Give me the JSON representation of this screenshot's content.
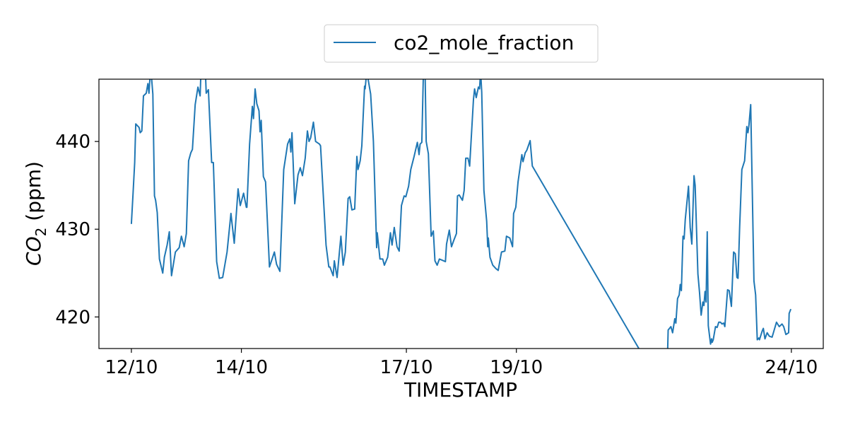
{
  "chart_data": {
    "type": "line",
    "title": "",
    "xlabel": "TIMESTAMP",
    "ylabel_main": "CO",
    "ylabel_sub": "2",
    "ylabel_unit": " (ppm)",
    "x_unit": "days since 12/10",
    "xlim": [
      -0.59,
      12.58
    ],
    "ylim": [
      416.4,
      447.1
    ],
    "grid": false,
    "legend_placement": "top-center (outside)",
    "x_ticks": [
      {
        "value": 0,
        "label": "12/10"
      },
      {
        "value": 2,
        "label": "14/10"
      },
      {
        "value": 5,
        "label": "17/10"
      },
      {
        "value": 7,
        "label": "19/10"
      },
      {
        "value": 12,
        "label": "24/10"
      }
    ],
    "y_ticks": [
      {
        "value": 420,
        "label": "420"
      },
      {
        "value": 430,
        "label": "430"
      },
      {
        "value": 440,
        "label": "440"
      }
    ],
    "series": [
      {
        "name": "co2_mole_fraction",
        "color": "#1f77b4",
        "points": [
          [
            0,
            430.6
          ],
          [
            0.03,
            434.1
          ],
          [
            0.06,
            437.6
          ],
          [
            0.08,
            442.0
          ],
          [
            0.14,
            441.6
          ],
          [
            0.16,
            441.0
          ],
          [
            0.19,
            441.2
          ],
          [
            0.22,
            445.2
          ],
          [
            0.27,
            445.5
          ],
          [
            0.3,
            446.6
          ],
          [
            0.32,
            445.5
          ],
          [
            0.35,
            448.5
          ],
          [
            0.39,
            445.4
          ],
          [
            0.42,
            433.8
          ],
          [
            0.44,
            433.3
          ],
          [
            0.47,
            431.9
          ],
          [
            0.51,
            426.6
          ],
          [
            0.57,
            425.0
          ],
          [
            0.6,
            426.8
          ],
          [
            0.65,
            428.2
          ],
          [
            0.69,
            429.7
          ],
          [
            0.73,
            424.7
          ],
          [
            0.8,
            427.4
          ],
          [
            0.87,
            427.9
          ],
          [
            0.91,
            429.2
          ],
          [
            0.96,
            428.0
          ],
          [
            1.0,
            429.5
          ],
          [
            1.04,
            437.8
          ],
          [
            1.08,
            438.7
          ],
          [
            1.11,
            439.1
          ],
          [
            1.16,
            444.2
          ],
          [
            1.21,
            446.2
          ],
          [
            1.25,
            445.2
          ],
          [
            1.27,
            449.0
          ],
          [
            1.34,
            449.0
          ],
          [
            1.36,
            445.5
          ],
          [
            1.4,
            445.9
          ],
          [
            1.46,
            437.6
          ],
          [
            1.49,
            437.6
          ],
          [
            1.55,
            426.3
          ],
          [
            1.6,
            424.4
          ],
          [
            1.66,
            424.5
          ],
          [
            1.74,
            427.4
          ],
          [
            1.81,
            431.8
          ],
          [
            1.87,
            428.4
          ],
          [
            1.94,
            434.6
          ],
          [
            1.98,
            432.7
          ],
          [
            2.04,
            434.1
          ],
          [
            2.09,
            432.5
          ],
          [
            2.1,
            432.5
          ],
          [
            2.15,
            439.7
          ],
          [
            2.2,
            444.0
          ],
          [
            2.22,
            442.6
          ],
          [
            2.25,
            446.0
          ],
          [
            2.28,
            444.3
          ],
          [
            2.32,
            443.5
          ],
          [
            2.34,
            441.1
          ],
          [
            2.36,
            442.4
          ],
          [
            2.4,
            436.0
          ],
          [
            2.44,
            435.4
          ],
          [
            2.51,
            425.7
          ],
          [
            2.6,
            427.4
          ],
          [
            2.64,
            426.0
          ],
          [
            2.7,
            425.2
          ],
          [
            2.77,
            436.8
          ],
          [
            2.84,
            439.7
          ],
          [
            2.88,
            440.3
          ],
          [
            2.9,
            438.8
          ],
          [
            2.92,
            441.0
          ],
          [
            2.97,
            432.9
          ],
          [
            3.03,
            436.2
          ],
          [
            3.07,
            437.0
          ],
          [
            3.11,
            436.1
          ],
          [
            3.16,
            438.1
          ],
          [
            3.2,
            441.2
          ],
          [
            3.23,
            440.0
          ],
          [
            3.26,
            440.4
          ],
          [
            3.31,
            442.2
          ],
          [
            3.35,
            440.0
          ],
          [
            3.42,
            439.7
          ],
          [
            3.44,
            439.5
          ],
          [
            3.54,
            428.2
          ],
          [
            3.59,
            425.7
          ],
          [
            3.61,
            425.7
          ],
          [
            3.67,
            424.7
          ],
          [
            3.69,
            426.4
          ],
          [
            3.74,
            424.5
          ],
          [
            3.81,
            429.2
          ],
          [
            3.85,
            425.9
          ],
          [
            3.89,
            427.4
          ],
          [
            3.94,
            433.5
          ],
          [
            3.97,
            433.7
          ],
          [
            4.01,
            432.2
          ],
          [
            4.06,
            432.3
          ],
          [
            4.1,
            438.3
          ],
          [
            4.12,
            436.8
          ],
          [
            4.16,
            437.8
          ],
          [
            4.19,
            439.5
          ],
          [
            4.24,
            446.3
          ],
          [
            4.25,
            446.0
          ],
          [
            4.28,
            448.0
          ],
          [
            4.35,
            445.4
          ],
          [
            4.4,
            440.0
          ],
          [
            4.46,
            427.9
          ],
          [
            4.47,
            429.6
          ],
          [
            4.52,
            426.6
          ],
          [
            4.57,
            426.6
          ],
          [
            4.6,
            425.9
          ],
          [
            4.66,
            426.8
          ],
          [
            4.71,
            429.6
          ],
          [
            4.74,
            428.2
          ],
          [
            4.78,
            430.2
          ],
          [
            4.83,
            428.0
          ],
          [
            4.87,
            427.5
          ],
          [
            4.91,
            432.7
          ],
          [
            4.96,
            433.8
          ],
          [
            4.99,
            433.7
          ],
          [
            5.04,
            434.9
          ],
          [
            5.08,
            436.8
          ],
          [
            5.14,
            438.3
          ],
          [
            5.2,
            439.9
          ],
          [
            5.23,
            438.5
          ],
          [
            5.25,
            439.7
          ],
          [
            5.28,
            439.9
          ],
          [
            5.31,
            448.0
          ],
          [
            5.34,
            448.0
          ],
          [
            5.36,
            440.0
          ],
          [
            5.4,
            438.6
          ],
          [
            5.45,
            429.2
          ],
          [
            5.49,
            429.8
          ],
          [
            5.52,
            426.4
          ],
          [
            5.56,
            425.9
          ],
          [
            5.6,
            426.6
          ],
          [
            5.64,
            426.5
          ],
          [
            5.71,
            426.3
          ],
          [
            5.73,
            428.3
          ],
          [
            5.78,
            429.9
          ],
          [
            5.82,
            428.0
          ],
          [
            5.86,
            428.7
          ],
          [
            5.91,
            429.5
          ],
          [
            5.93,
            433.8
          ],
          [
            5.96,
            433.9
          ],
          [
            6.02,
            433.3
          ],
          [
            6.05,
            434.4
          ],
          [
            6.08,
            438.1
          ],
          [
            6.12,
            438.1
          ],
          [
            6.15,
            437.2
          ],
          [
            6.22,
            444.8
          ],
          [
            6.24,
            446.0
          ],
          [
            6.27,
            445.0
          ],
          [
            6.31,
            446.2
          ],
          [
            6.33,
            446.0
          ],
          [
            6.35,
            448.0
          ],
          [
            6.37,
            445.6
          ],
          [
            6.41,
            434.4
          ],
          [
            6.46,
            430.9
          ],
          [
            6.48,
            428.0
          ],
          [
            6.49,
            429.0
          ],
          [
            6.52,
            426.8
          ],
          [
            6.57,
            425.9
          ],
          [
            6.63,
            425.5
          ],
          [
            6.67,
            425.3
          ],
          [
            6.71,
            426.7
          ],
          [
            6.73,
            427.4
          ],
          [
            6.79,
            427.5
          ],
          [
            6.82,
            429.2
          ],
          [
            6.88,
            429.0
          ],
          [
            6.93,
            428.0
          ],
          [
            6.95,
            431.8
          ],
          [
            6.99,
            432.5
          ],
          [
            7.03,
            435.4
          ],
          [
            7.1,
            438.5
          ],
          [
            7.12,
            437.7
          ],
          [
            7.16,
            438.7
          ],
          [
            7.19,
            439.0
          ],
          [
            7.25,
            440.1
          ],
          [
            7.29,
            437.2
          ],
          [
            9.73,
            411.0
          ],
          [
            9.76,
            418.5
          ],
          [
            9.81,
            418.9
          ],
          [
            9.84,
            418.2
          ],
          [
            9.88,
            419.8
          ],
          [
            9.9,
            419.3
          ],
          [
            9.93,
            422.1
          ],
          [
            9.96,
            422.5
          ],
          [
            9.98,
            423.7
          ],
          [
            10.0,
            423.0
          ],
          [
            10.03,
            429.2
          ],
          [
            10.05,
            428.9
          ],
          [
            10.07,
            431.1
          ],
          [
            10.13,
            434.9
          ],
          [
            10.16,
            430.2
          ],
          [
            10.19,
            428.3
          ],
          [
            10.23,
            436.1
          ],
          [
            10.25,
            435.0
          ],
          [
            10.3,
            424.9
          ],
          [
            10.33,
            422.8
          ],
          [
            10.36,
            420.2
          ],
          [
            10.39,
            421.7
          ],
          [
            10.41,
            421.3
          ],
          [
            10.43,
            422.9
          ],
          [
            10.45,
            421.7
          ],
          [
            10.47,
            429.7
          ],
          [
            10.49,
            419.0
          ],
          [
            10.53,
            416.9
          ],
          [
            10.55,
            417.5
          ],
          [
            10.56,
            417.1
          ],
          [
            10.58,
            417.4
          ],
          [
            10.62,
            418.9
          ],
          [
            10.65,
            418.8
          ],
          [
            10.68,
            419.4
          ],
          [
            10.71,
            419.4
          ],
          [
            10.74,
            419.2
          ],
          [
            10.77,
            419.3
          ],
          [
            10.79,
            418.9
          ],
          [
            10.84,
            423.1
          ],
          [
            10.87,
            423.0
          ],
          [
            10.91,
            421.2
          ],
          [
            10.95,
            427.4
          ],
          [
            10.98,
            427.2
          ],
          [
            11.01,
            424.5
          ],
          [
            11.03,
            424.4
          ],
          [
            11.06,
            430.3
          ],
          [
            11.1,
            436.8
          ],
          [
            11.15,
            437.8
          ],
          [
            11.19,
            441.7
          ],
          [
            11.21,
            441.0
          ],
          [
            11.23,
            441.9
          ],
          [
            11.26,
            444.2
          ],
          [
            11.32,
            424.1
          ],
          [
            11.35,
            422.5
          ],
          [
            11.38,
            417.4
          ],
          [
            11.41,
            417.6
          ],
          [
            11.42,
            417.4
          ],
          [
            11.47,
            418.4
          ],
          [
            11.49,
            418.7
          ],
          [
            11.52,
            417.5
          ],
          [
            11.56,
            418.2
          ],
          [
            11.6,
            417.8
          ],
          [
            11.65,
            417.7
          ],
          [
            11.73,
            419.4
          ],
          [
            11.78,
            418.9
          ],
          [
            11.83,
            419.2
          ],
          [
            11.86,
            418.9
          ],
          [
            11.9,
            418.0
          ],
          [
            11.95,
            418.2
          ],
          [
            11.96,
            420.4
          ],
          [
            11.99,
            420.9
          ]
        ]
      }
    ]
  }
}
